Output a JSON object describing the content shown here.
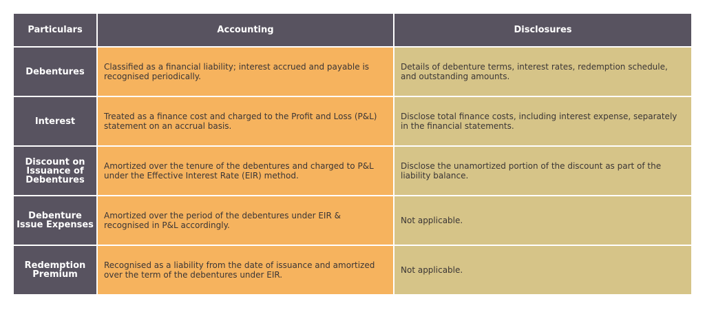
{
  "table": {
    "headers": {
      "particulars": "Particulars",
      "accounting": "Accounting",
      "disclosures": "Disclosures"
    },
    "rows": [
      {
        "particular": "Debentures",
        "accounting": "Classified as a financial liability; interest accrued and payable is recognised periodically.",
        "disclosures": "Details of debenture terms, interest rates, redemption schedule, and outstanding amounts."
      },
      {
        "particular": "Interest",
        "accounting": "Treated as a finance cost and charged to the Profit and Loss (P&L) statement on an accrual basis.",
        "disclosures": "Disclose total finance costs, including interest expense, separately in the financial statements."
      },
      {
        "particular": "Discount on Issuance of Debentures",
        "accounting": "Amortized over the tenure of the debentures and charged to P&L under the Effective Interest Rate (EIR) method.",
        "disclosures": "Disclose the unamortized portion of the discount as part of the liability balance."
      },
      {
        "particular": "Debenture Issue Expenses",
        "accounting": "Amortized over the period of the debentures under EIR & recognised in P&L accordingly.",
        "disclosures": "Not applicable."
      },
      {
        "particular": "Redemption Premium",
        "accounting": "Recognised as a liability from the date of issuance and amortized over the term of the debentures under EIR.",
        "disclosures": "Not applicable."
      }
    ]
  },
  "colors": {
    "header_bg": "#585360",
    "accounting_bg": "#f6b35e",
    "disclosures_bg": "#d6c488"
  }
}
